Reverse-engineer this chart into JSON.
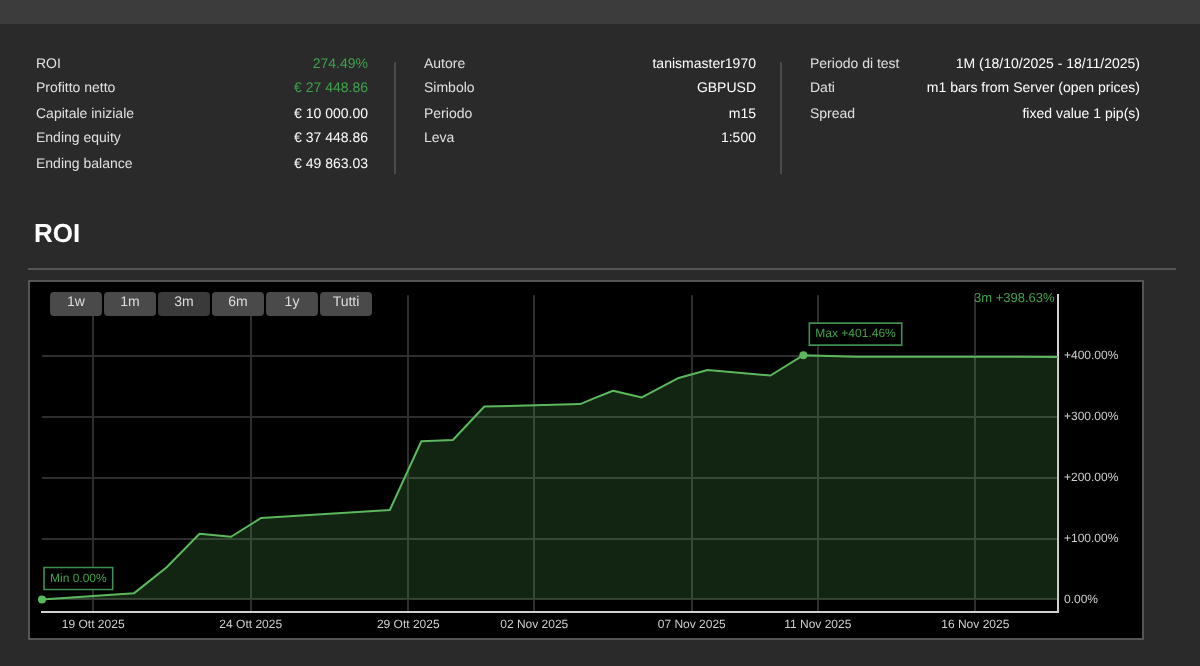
{
  "chart_data": [
    {
      "type": "other",
      "categories": [
        "ROI",
        "Profitto netto",
        "Capitale iniziale",
        "Ending equity",
        "Ending balance"
      ],
      "value_labels": [
        "274.49%",
        "€ 27 448.86",
        "€ 10 000.00",
        "€ 37 448.86",
        "€ 49 863.03"
      ],
      "colors": [
        "#3fa34d",
        "#3fa34d",
        "#ffffff",
        "#ffffff",
        "#ffffff"
      ]
    },
    {
      "type": "other",
      "categories": [
        "Autore",
        "Simbolo",
        "Periodo",
        "Leva"
      ],
      "value_labels": [
        "tanismaster1970",
        "GBPUSD",
        "m15",
        "1:500"
      ],
      "colors": [
        "#ffffff",
        "#ffffff",
        "#ffffff",
        "#ffffff"
      ]
    },
    {
      "type": "other",
      "categories": [
        "Periodo di test",
        "Dati",
        "Spread"
      ],
      "value_labels": [
        "1M (18/10/2025 - 18/11/2025)",
        "m1 bars from Server (open prices)",
        "fixed value 1 pip(s)"
      ],
      "colors": [
        "#ffffff",
        "#ffffff",
        "#ffffff"
      ]
    },
    {
      "type": "area",
      "title": "ROI",
      "x": [
        "2025-10-17T09:00",
        "2025-10-20T07:00",
        "2025-10-21T08:00",
        "2025-10-22T09:00",
        "2025-10-23T09:00",
        "2025-10-24T08:00",
        "2025-10-28T10:00",
        "2025-10-29T10:00",
        "2025-10-30T10:00",
        "2025-10-31T10:00",
        "2025-11-03T11:00",
        "2025-11-03T21:00",
        "2025-11-04T12:00",
        "2025-11-05T10:00",
        "2025-11-06T14:00",
        "2025-11-07T12:00",
        "2025-11-09T12:00",
        "2025-11-10T13:00",
        "2025-11-12T05:00",
        "2025-11-18T15:00"
      ],
      "series": [
        {
          "color": "#5cb85c",
          "values": [
            0,
            10,
            53,
            108,
            103,
            134,
            147,
            260,
            262,
            317,
            321,
            330,
            343,
            332,
            364,
            377,
            368,
            401.46,
            399,
            398.63
          ]
        }
      ],
      "xlim": [
        "2025-10-17T09:00",
        "2025-11-18T15:00"
      ],
      "xticks": [
        {
          "value": "2025-10-19",
          "label": "19 Ott 2025"
        },
        {
          "value": "2025-10-24",
          "label": "24 Ott 2025"
        },
        {
          "value": "2025-10-29",
          "label": "29 Ott 2025"
        },
        {
          "value": "2025-11-02",
          "label": "02 Nov 2025"
        },
        {
          "value": "2025-11-07",
          "label": "07 Nov 2025"
        },
        {
          "value": "2025-11-11",
          "label": "11 Nov 2025"
        },
        {
          "value": "2025-11-16",
          "label": "16 Nov 2025"
        }
      ],
      "ylim": [
        -20,
        500
      ],
      "yticks": [
        {
          "value": 0,
          "label": "0.00%"
        },
        {
          "value": 100,
          "label": "+100.00%"
        },
        {
          "value": 200,
          "label": "+200.00%"
        },
        {
          "value": 300,
          "label": "+300.00%"
        },
        {
          "value": 400,
          "label": "+400.00%"
        }
      ],
      "grid": true,
      "legend": false,
      "marker": "none",
      "line_style": "solid",
      "annotations": [
        "1w",
        "1m",
        "3m",
        "6m",
        "1y",
        "Tutti",
        "3m +398.63%",
        {
          "text": "Min 0.00%",
          "x": "2025-10-17T09:00",
          "y": 0
        },
        {
          "text": "Max +401.46%",
          "x": "2025-11-10T13:00",
          "y": 401.46
        }
      ]
    }
  ]
}
